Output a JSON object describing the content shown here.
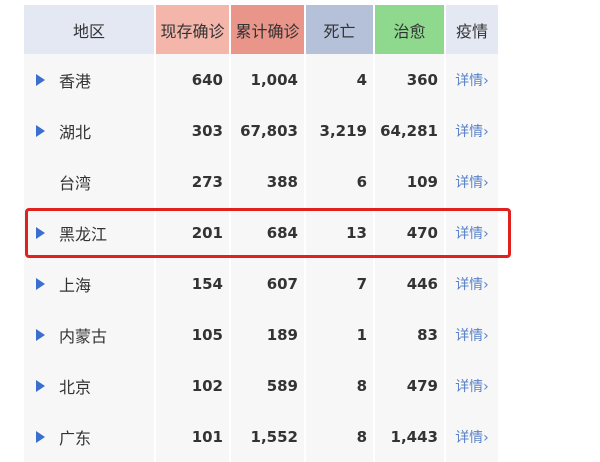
{
  "header": {
    "region": "地区",
    "current": "现存确诊",
    "total": "累计确诊",
    "deaths": "死亡",
    "recovered": "治愈",
    "detail": "疫情"
  },
  "header_colors": {
    "region": "#e3e8f3",
    "current": "#f4b6aa",
    "total": "#e9958a",
    "deaths": "#b4c1d8",
    "recovered": "#8fd98f",
    "detail": "#e3e8f3"
  },
  "highlight_color": "#e0221e",
  "rows": [
    {
      "region": "香港",
      "current": "640",
      "total": "1,004",
      "deaths": "4",
      "recovered": "360",
      "detail": "详情›",
      "expandable": true
    },
    {
      "region": "湖北",
      "current": "303",
      "total": "67,803",
      "deaths": "3,219",
      "recovered": "64,281",
      "detail": "详情›",
      "expandable": true
    },
    {
      "region": "台湾",
      "current": "273",
      "total": "388",
      "deaths": "6",
      "recovered": "109",
      "detail": "详情›",
      "expandable": false
    },
    {
      "region": "黑龙江",
      "current": "201",
      "total": "684",
      "deaths": "13",
      "recovered": "470",
      "detail": "详情›",
      "expandable": true,
      "highlighted": true
    },
    {
      "region": "上海",
      "current": "154",
      "total": "607",
      "deaths": "7",
      "recovered": "446",
      "detail": "详情›",
      "expandable": true
    },
    {
      "region": "内蒙古",
      "current": "105",
      "total": "189",
      "deaths": "1",
      "recovered": "83",
      "detail": "详情›",
      "expandable": true
    },
    {
      "region": "北京",
      "current": "102",
      "total": "589",
      "deaths": "8",
      "recovered": "479",
      "detail": "详情›",
      "expandable": true
    },
    {
      "region": "广东",
      "current": "101",
      "total": "1,552",
      "deaths": "8",
      "recovered": "1,443",
      "detail": "详情›",
      "expandable": true
    }
  ]
}
